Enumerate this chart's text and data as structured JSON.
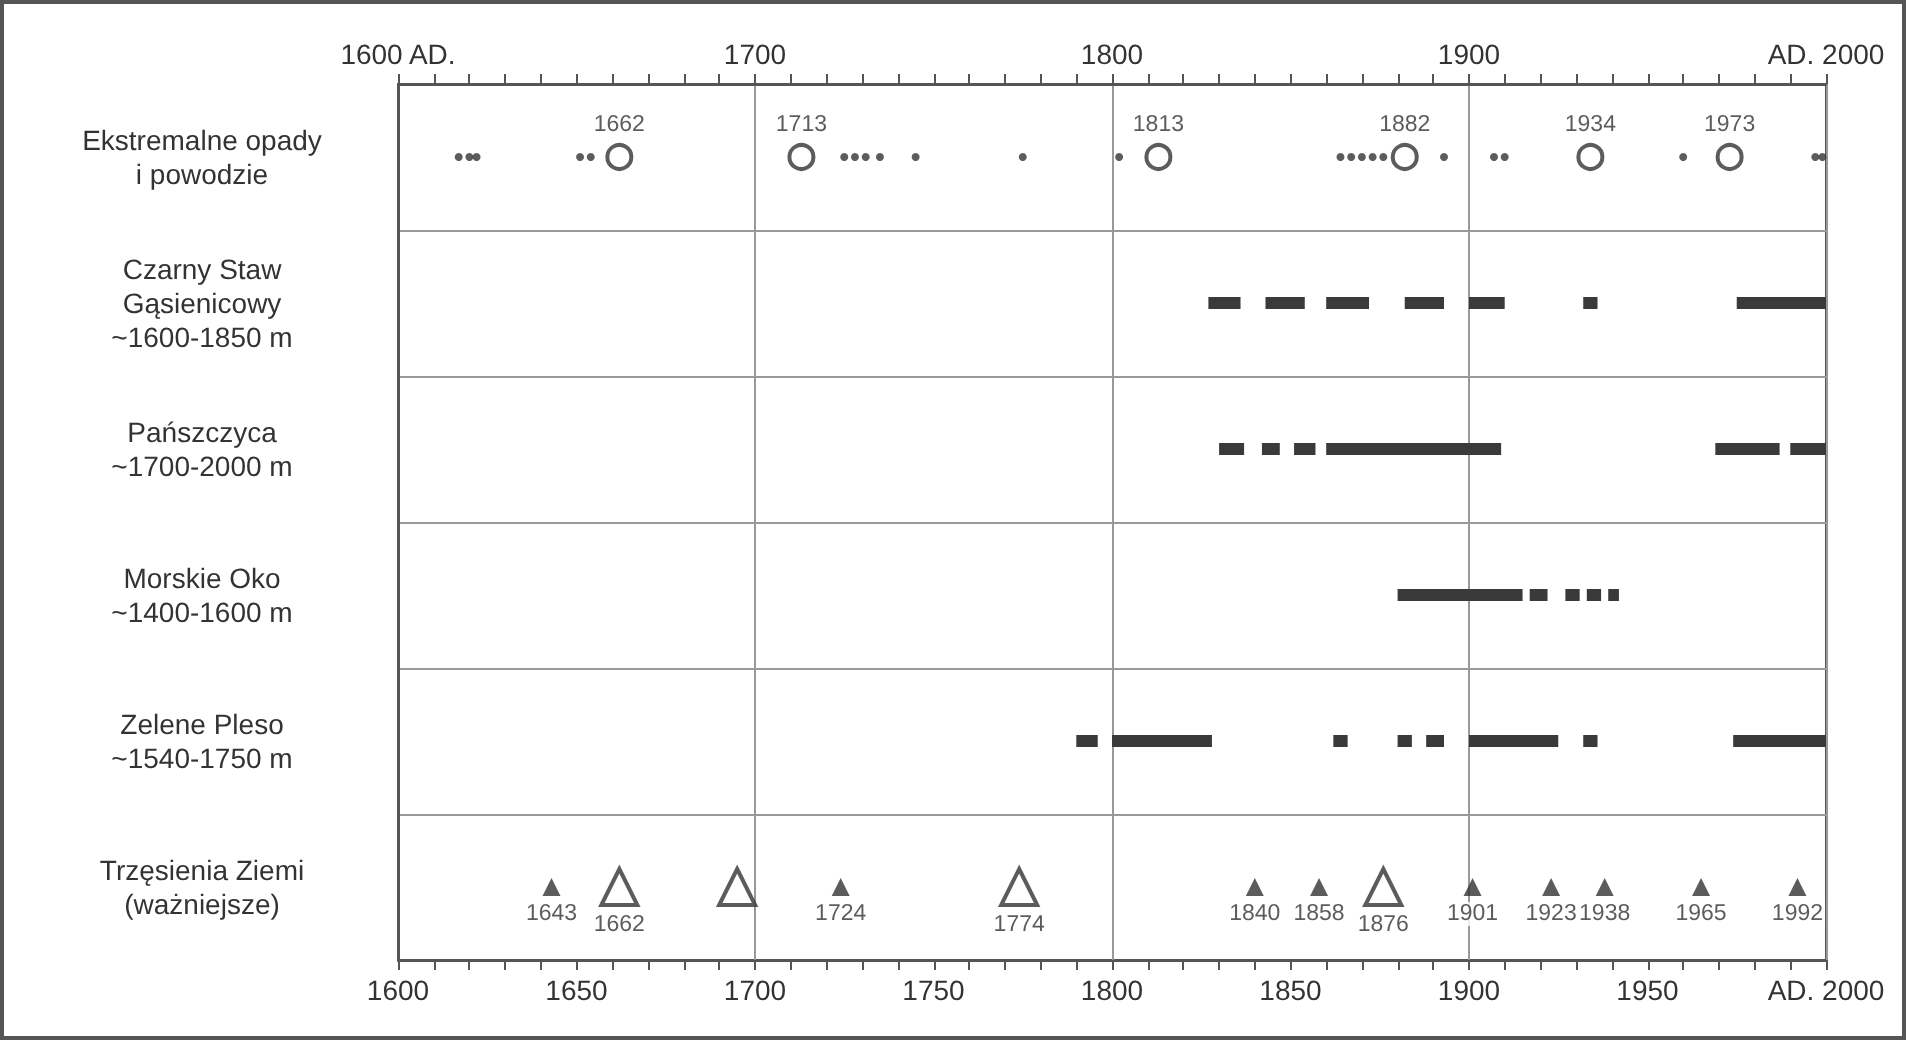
{
  "chart_data": {
    "type": "bar",
    "orientation": "horizontal",
    "grid": true,
    "categories": [
      "Ekstremalne opady\ni powodzie",
      "Czarny Staw\nGąsienicowy\n~1600-1850 m",
      "Pańszczyca\n~1700-2000 m",
      "Morskie Oko\n~1400-1600 m",
      "Zelene Pleso\n~1540-1750 m",
      "Trzęsienia Ziemi\n(ważniejsze)"
    ],
    "xlim": [
      1600,
      2000
    ],
    "xticks": [
      {
        "value": 1600,
        "label": "1600"
      },
      {
        "value": 1610,
        "label": null
      },
      {
        "value": 1620,
        "label": null
      },
      {
        "value": 1630,
        "label": null
      },
      {
        "value": 1640,
        "label": null
      },
      {
        "value": 1650,
        "label": "1650"
      },
      {
        "value": 1660,
        "label": null
      },
      {
        "value": 1670,
        "label": null
      },
      {
        "value": 1680,
        "label": null
      },
      {
        "value": 1690,
        "label": null
      },
      {
        "value": 1700,
        "label": "1700"
      },
      {
        "value": 1710,
        "label": null
      },
      {
        "value": 1720,
        "label": null
      },
      {
        "value": 1730,
        "label": null
      },
      {
        "value": 1740,
        "label": null
      },
      {
        "value": 1750,
        "label": "1750"
      },
      {
        "value": 1760,
        "label": null
      },
      {
        "value": 1770,
        "label": null
      },
      {
        "value": 1780,
        "label": null
      },
      {
        "value": 1790,
        "label": null
      },
      {
        "value": 1800,
        "label": "1800"
      },
      {
        "value": 1810,
        "label": null
      },
      {
        "value": 1820,
        "label": null
      },
      {
        "value": 1830,
        "label": null
      },
      {
        "value": 1840,
        "label": null
      },
      {
        "value": 1850,
        "label": "1850"
      },
      {
        "value": 1860,
        "label": null
      },
      {
        "value": 1870,
        "label": null
      },
      {
        "value": 1880,
        "label": null
      },
      {
        "value": 1890,
        "label": null
      },
      {
        "value": 1900,
        "label": "1900"
      },
      {
        "value": 1910,
        "label": null
      },
      {
        "value": 1920,
        "label": null
      },
      {
        "value": 1930,
        "label": null
      },
      {
        "value": 1940,
        "label": null
      },
      {
        "value": 1950,
        "label": "1950"
      },
      {
        "value": 1960,
        "label": null
      },
      {
        "value": 1970,
        "label": null
      },
      {
        "value": 1980,
        "label": null
      },
      {
        "value": 1990,
        "label": null
      },
      {
        "value": 2000,
        "label": "AD. 2000"
      }
    ],
    "x2lim": [
      1600,
      2000
    ],
    "x2ticks": [
      {
        "value": 1600,
        "label": "1600 AD."
      },
      {
        "value": 1610,
        "label": null
      },
      {
        "value": 1620,
        "label": null
      },
      {
        "value": 1630,
        "label": null
      },
      {
        "value": 1640,
        "label": null
      },
      {
        "value": 1650,
        "label": null
      },
      {
        "value": 1660,
        "label": null
      },
      {
        "value": 1670,
        "label": null
      },
      {
        "value": 1680,
        "label": null
      },
      {
        "value": 1690,
        "label": null
      },
      {
        "value": 1700,
        "label": "1700"
      },
      {
        "value": 1710,
        "label": null
      },
      {
        "value": 1720,
        "label": null
      },
      {
        "value": 1730,
        "label": null
      },
      {
        "value": 1740,
        "label": null
      },
      {
        "value": 1750,
        "label": null
      },
      {
        "value": 1760,
        "label": null
      },
      {
        "value": 1770,
        "label": null
      },
      {
        "value": 1780,
        "label": null
      },
      {
        "value": 1790,
        "label": null
      },
      {
        "value": 1800,
        "label": "1800"
      },
      {
        "value": 1810,
        "label": null
      },
      {
        "value": 1820,
        "label": null
      },
      {
        "value": 1830,
        "label": null
      },
      {
        "value": 1840,
        "label": null
      },
      {
        "value": 1850,
        "label": null
      },
      {
        "value": 1860,
        "label": null
      },
      {
        "value": 1870,
        "label": null
      },
      {
        "value": 1880,
        "label": null
      },
      {
        "value": 1890,
        "label": null
      },
      {
        "value": 1900,
        "label": "1900"
      },
      {
        "value": 1910,
        "label": null
      },
      {
        "value": 1920,
        "label": null
      },
      {
        "value": 1930,
        "label": null
      },
      {
        "value": 1940,
        "label": null
      },
      {
        "value": 1950,
        "label": null
      },
      {
        "value": 1960,
        "label": null
      },
      {
        "value": 1970,
        "label": null
      },
      {
        "value": 1980,
        "label": null
      },
      {
        "value": 1990,
        "label": null
      },
      {
        "value": 2000,
        "label": "AD. 2000"
      }
    ],
    "series": [
      {
        "type": "bar",
        "color": "#3a3a3a",
        "base": [
          null,
          1827,
          1830,
          1880,
          1790,
          null
        ],
        "values": [
          null,
          9,
          7,
          20,
          6,
          null
        ]
      },
      {
        "type": "bar",
        "color": "#3a3a3a",
        "base": [
          null,
          1843,
          1842,
          1900,
          1800,
          null
        ],
        "values": [
          null,
          11,
          5,
          15,
          28,
          null
        ]
      },
      {
        "type": "bar",
        "color": "#3a3a3a",
        "base": [
          null,
          1860,
          1851,
          1917,
          1862,
          null
        ],
        "values": [
          null,
          12,
          6,
          5,
          4,
          null
        ]
      },
      {
        "type": "bar",
        "color": "#3a3a3a",
        "base": [
          null,
          1882,
          1860,
          1927,
          1880,
          null
        ],
        "values": [
          null,
          11,
          49,
          4,
          4,
          null
        ]
      },
      {
        "type": "bar",
        "color": "#3a3a3a",
        "base": [
          null,
          1900,
          1969,
          1933,
          1888,
          null
        ],
        "values": [
          null,
          10,
          18,
          4,
          5,
          null
        ]
      },
      {
        "type": "bar",
        "color": "#3a3a3a",
        "base": [
          null,
          1932,
          1990,
          1939,
          1900,
          null
        ],
        "values": [
          null,
          4,
          10,
          3,
          25,
          null
        ]
      },
      {
        "type": "bar",
        "color": "#3a3a3a",
        "base": [
          null,
          1975,
          null,
          null,
          1932,
          null
        ],
        "values": [
          null,
          25,
          null,
          null,
          4,
          null
        ]
      },
      {
        "type": "bar",
        "color": "#3a3a3a",
        "base": [
          null,
          null,
          null,
          null,
          1974,
          null
        ],
        "values": [
          null,
          null,
          null,
          null,
          26,
          null
        ]
      },
      {
        "type": "scatter",
        "marker": "circle",
        "color": "#333333",
        "x": [
          "Ekstremalne opady\ni powodzie",
          "Ekstremalne opady\ni powodzie",
          "Ekstremalne opady\ni powodzie",
          "Ekstremalne opady\ni powodzie",
          "Ekstremalne opady\ni powodzie",
          "Ekstremalne opady\ni powodzie",
          "Ekstremalne opady\ni powodzie",
          "Ekstremalne opady\ni powodzie",
          "Ekstremalne opady\ni powodzie",
          "Ekstremalne opady\ni powodzie",
          "Ekstremalne opady\ni powodzie",
          "Ekstremalne opady\ni powodzie",
          "Ekstremalne opady\ni powodzie",
          "Ekstremalne opady\ni powodzie",
          "Ekstremalne opady\ni powodzie",
          "Ekstremalne opady\ni powodzie",
          "Ekstremalne opady\ni powodzie",
          "Ekstremalne opady\ni powodzie",
          "Ekstremalne opady\ni powodzie",
          "Ekstremalne opady\ni powodzie",
          "Ekstremalne opady\ni powodzie",
          "Ekstremalne opady\ni powodzie",
          "Ekstremalne opady\ni powodzie"
        ],
        "values": [
          1617,
          1620,
          1622,
          1651,
          1654,
          1725,
          1728,
          1731,
          1735,
          1745,
          1775,
          1802,
          1864,
          1867,
          1870,
          1873,
          1876,
          1893,
          1907,
          1910,
          1960,
          1997,
          1999
        ]
      },
      {
        "type": "scatter",
        "marker": "circle",
        "color": "#333333",
        "x": [
          "Ekstremalne opady\ni powodzie",
          "Ekstremalne opady\ni powodzie",
          "Ekstremalne opady\ni powodzie",
          "Ekstremalne opady\ni powodzie",
          "Ekstremalne opady\ni powodzie",
          "Ekstremalne opady\ni powodzie"
        ],
        "values": [
          1662,
          1713,
          1813,
          1882,
          1934,
          1973
        ],
        "value_labels": [
          "1662",
          "1713",
          "1813",
          "1882",
          "1934",
          "1973"
        ]
      },
      {
        "type": "scatter",
        "marker": "triangle",
        "color": "#333333",
        "x": [
          "Trzęsienia Ziemi\n(ważniejsze)",
          "Trzęsienia Ziemi\n(ważniejsze)",
          "Trzęsienia Ziemi\n(ważniejsze)",
          "Trzęsienia Ziemi\n(ważniejsze)",
          "Trzęsienia Ziemi\n(ważniejsze)",
          "Trzęsienia Ziemi\n(ważniejsze)",
          "Trzęsienia Ziemi\n(ważniejsze)",
          "Trzęsienia Ziemi\n(ważniejsze)",
          "Trzęsienia Ziemi\n(ważniejsze)"
        ],
        "values": [
          1643,
          1724,
          1840,
          1858,
          1901,
          1923,
          1938,
          1965,
          1992
        ],
        "value_labels": [
          "1643",
          "1724",
          "1840",
          "1858",
          "1901",
          "1923",
          "1938",
          "1965",
          "1992"
        ]
      },
      {
        "type": "scatter",
        "marker": "triangle",
        "color": "#333333",
        "x": [
          "Trzęsienia Ziemi\n(ważniejsze)",
          "Trzęsienia Ziemi\n(ważniejsze)",
          "Trzęsienia Ziemi\n(ważniejsze)",
          "Trzęsienia Ziemi\n(ważniejsze)"
        ],
        "values": [
          1662,
          1695,
          1774,
          1876
        ],
        "value_labels": [
          "1662",
          null,
          "1774",
          "1876"
        ]
      }
    ]
  }
}
